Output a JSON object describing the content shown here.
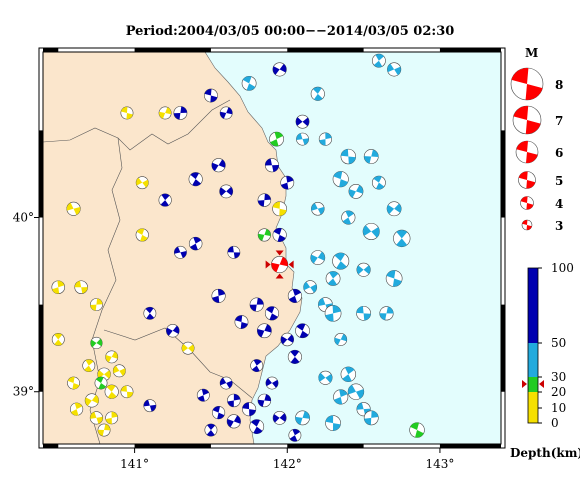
{
  "title": "Period:2004/03/05 00:00−−2014/03/05 02:30",
  "map": {
    "lon_range": [
      140.4,
      143.4
    ],
    "lat_range": [
      38.7,
      40.95
    ],
    "lon_ticks": [
      141,
      142,
      143
    ],
    "lat_ticks": [
      39,
      40
    ],
    "lon_labels": [
      "141°",
      "142°",
      "143°"
    ],
    "lat_labels": [
      "39°",
      "40°"
    ],
    "land_color": "#fbe6cc",
    "sea_color": "#e3fdfd"
  },
  "magnitude_legend": {
    "title": "M",
    "items": [
      {
        "label": "8",
        "m": 8
      },
      {
        "label": "7",
        "m": 7
      },
      {
        "label": "6",
        "m": 6
      },
      {
        "label": "5",
        "m": 5
      },
      {
        "label": "4",
        "m": 4
      },
      {
        "label": "3",
        "m": 3
      }
    ]
  },
  "depth_legend": {
    "title": "Depth(km)",
    "ticks": [
      "100",
      "50",
      "30",
      "20",
      "10",
      "0"
    ],
    "colors": {
      "0-10": "#f5e000",
      "10-20": "#f5e000",
      "20-30": "#22cc22",
      "30-50": "#22aadd",
      "50-100": "#0000b0"
    }
  },
  "latest_event": {
    "lon": 141.95,
    "lat": 39.73,
    "m": 4.5,
    "color": "#ff0000"
  },
  "events": [
    {
      "lon": 141.3,
      "lat": 40.6,
      "m": 3.5,
      "d": "deep"
    },
    {
      "lon": 141.5,
      "lat": 40.7,
      "m": 3.5,
      "d": "deep"
    },
    {
      "lon": 141.6,
      "lat": 40.6,
      "m": 3.2,
      "d": "deep"
    },
    {
      "lon": 141.75,
      "lat": 40.77,
      "m": 3.8,
      "d": "mid"
    },
    {
      "lon": 141.95,
      "lat": 40.85,
      "m": 3.6,
      "d": "deep"
    },
    {
      "lon": 142.2,
      "lat": 40.71,
      "m": 3.6,
      "d": "mid"
    },
    {
      "lon": 142.1,
      "lat": 40.55,
      "m": 3.5,
      "d": "deep"
    },
    {
      "lon": 142.6,
      "lat": 40.9,
      "m": 3.5,
      "d": "mid"
    },
    {
      "lon": 142.7,
      "lat": 40.85,
      "m": 3.6,
      "d": "mid"
    },
    {
      "lon": 141.93,
      "lat": 40.45,
      "m": 3.8,
      "d": "shallow_g"
    },
    {
      "lon": 142.1,
      "lat": 40.45,
      "m": 3.2,
      "d": "mid"
    },
    {
      "lon": 142.25,
      "lat": 40.45,
      "m": 3.3,
      "d": "mid"
    },
    {
      "lon": 142.4,
      "lat": 40.35,
      "m": 4.0,
      "d": "mid"
    },
    {
      "lon": 142.55,
      "lat": 40.35,
      "m": 3.8,
      "d": "mid"
    },
    {
      "lon": 142.35,
      "lat": 40.22,
      "m": 4.2,
      "d": "mid"
    },
    {
      "lon": 142.45,
      "lat": 40.15,
      "m": 3.8,
      "d": "mid"
    },
    {
      "lon": 142.6,
      "lat": 40.2,
      "m": 3.5,
      "d": "mid"
    },
    {
      "lon": 142.7,
      "lat": 40.05,
      "m": 3.8,
      "d": "mid"
    },
    {
      "lon": 142.75,
      "lat": 39.88,
      "m": 4.6,
      "d": "mid"
    },
    {
      "lon": 142.55,
      "lat": 39.92,
      "m": 4.5,
      "d": "mid"
    },
    {
      "lon": 142.4,
      "lat": 40.0,
      "m": 3.6,
      "d": "mid"
    },
    {
      "lon": 142.2,
      "lat": 40.05,
      "m": 3.4,
      "d": "mid"
    },
    {
      "lon": 142.0,
      "lat": 40.2,
      "m": 3.5,
      "d": "deep"
    },
    {
      "lon": 141.9,
      "lat": 40.3,
      "m": 3.6,
      "d": "deep"
    },
    {
      "lon": 141.85,
      "lat": 40.1,
      "m": 3.4,
      "d": "deep"
    },
    {
      "lon": 141.95,
      "lat": 40.05,
      "m": 3.8,
      "d": "shallow"
    },
    {
      "lon": 141.85,
      "lat": 39.9,
      "m": 3.3,
      "d": "shallow_g"
    },
    {
      "lon": 141.95,
      "lat": 39.9,
      "m": 3.6,
      "d": "deep"
    },
    {
      "lon": 142.2,
      "lat": 39.77,
      "m": 3.8,
      "d": "mid"
    },
    {
      "lon": 142.35,
      "lat": 39.75,
      "m": 4.5,
      "d": "mid"
    },
    {
      "lon": 142.5,
      "lat": 39.7,
      "m": 3.6,
      "d": "mid"
    },
    {
      "lon": 142.3,
      "lat": 39.65,
      "m": 3.8,
      "d": "mid"
    },
    {
      "lon": 142.15,
      "lat": 39.6,
      "m": 3.5,
      "d": "mid"
    },
    {
      "lon": 142.05,
      "lat": 39.55,
      "m": 3.6,
      "d": "deep"
    },
    {
      "lon": 142.25,
      "lat": 39.5,
      "m": 3.8,
      "d": "mid"
    },
    {
      "lon": 142.3,
      "lat": 39.45,
      "m": 4.4,
      "d": "mid"
    },
    {
      "lon": 142.5,
      "lat": 39.45,
      "m": 3.8,
      "d": "mid"
    },
    {
      "lon": 142.65,
      "lat": 39.45,
      "m": 3.6,
      "d": "mid"
    },
    {
      "lon": 142.7,
      "lat": 39.65,
      "m": 4.4,
      "d": "mid"
    },
    {
      "lon": 142.35,
      "lat": 39.3,
      "m": 3.2,
      "d": "mid"
    },
    {
      "lon": 142.1,
      "lat": 39.35,
      "m": 3.8,
      "d": "deep"
    },
    {
      "lon": 142.0,
      "lat": 39.3,
      "m": 3.4,
      "d": "deep"
    },
    {
      "lon": 142.05,
      "lat": 39.2,
      "m": 3.6,
      "d": "deep"
    },
    {
      "lon": 142.25,
      "lat": 39.08,
      "m": 3.6,
      "d": "mid"
    },
    {
      "lon": 142.4,
      "lat": 39.1,
      "m": 4.0,
      "d": "mid"
    },
    {
      "lon": 142.45,
      "lat": 39.0,
      "m": 4.3,
      "d": "mid"
    },
    {
      "lon": 142.35,
      "lat": 38.97,
      "m": 3.9,
      "d": "mid"
    },
    {
      "lon": 142.5,
      "lat": 38.9,
      "m": 3.6,
      "d": "mid"
    },
    {
      "lon": 142.55,
      "lat": 38.85,
      "m": 3.8,
      "d": "mid"
    },
    {
      "lon": 142.3,
      "lat": 38.82,
      "m": 4.1,
      "d": "mid"
    },
    {
      "lon": 142.1,
      "lat": 38.85,
      "m": 3.8,
      "d": "mid"
    },
    {
      "lon": 142.85,
      "lat": 38.78,
      "m": 4.0,
      "d": "shallow_g"
    },
    {
      "lon": 141.55,
      "lat": 40.3,
      "m": 3.6,
      "d": "deep"
    },
    {
      "lon": 141.4,
      "lat": 40.22,
      "m": 3.6,
      "d": "deep"
    },
    {
      "lon": 141.6,
      "lat": 40.15,
      "m": 3.5,
      "d": "deep"
    },
    {
      "lon": 141.2,
      "lat": 40.1,
      "m": 3.3,
      "d": "deep"
    },
    {
      "lon": 141.05,
      "lat": 40.2,
      "m": 3.2,
      "d": "shallow"
    },
    {
      "lon": 141.4,
      "lat": 39.85,
      "m": 3.4,
      "d": "deep"
    },
    {
      "lon": 141.3,
      "lat": 39.8,
      "m": 3.2,
      "d": "deep"
    },
    {
      "lon": 141.55,
      "lat": 39.55,
      "m": 3.6,
      "d": "deep"
    },
    {
      "lon": 141.65,
      "lat": 39.8,
      "m": 3.2,
      "d": "deep"
    },
    {
      "lon": 141.8,
      "lat": 39.5,
      "m": 3.6,
      "d": "deep"
    },
    {
      "lon": 141.7,
      "lat": 39.4,
      "m": 3.5,
      "d": "deep"
    },
    {
      "lon": 141.85,
      "lat": 39.35,
      "m": 3.8,
      "d": "deep"
    },
    {
      "lon": 141.9,
      "lat": 39.45,
      "m": 3.6,
      "d": "deep"
    },
    {
      "lon": 141.25,
      "lat": 39.35,
      "m": 3.4,
      "d": "deep"
    },
    {
      "lon": 141.1,
      "lat": 39.45,
      "m": 3.2,
      "d": "deep"
    },
    {
      "lon": 141.35,
      "lat": 39.25,
      "m": 3.2,
      "d": "shallow"
    },
    {
      "lon": 141.8,
      "lat": 39.15,
      "m": 3.2,
      "d": "deep"
    },
    {
      "lon": 141.6,
      "lat": 39.05,
      "m": 3.2,
      "d": "deep"
    },
    {
      "lon": 141.45,
      "lat": 38.98,
      "m": 3.2,
      "d": "deep"
    },
    {
      "lon": 141.1,
      "lat": 38.92,
      "m": 3.2,
      "d": "deep"
    },
    {
      "lon": 141.65,
      "lat": 38.95,
      "m": 3.4,
      "d": "deep"
    },
    {
      "lon": 141.75,
      "lat": 38.9,
      "m": 3.6,
      "d": "deep"
    },
    {
      "lon": 141.85,
      "lat": 38.95,
      "m": 3.4,
      "d": "deep"
    },
    {
      "lon": 141.55,
      "lat": 38.88,
      "m": 3.3,
      "d": "deep"
    },
    {
      "lon": 141.65,
      "lat": 38.83,
      "m": 3.6,
      "d": "deep"
    },
    {
      "lon": 141.8,
      "lat": 38.8,
      "m": 3.8,
      "d": "deep"
    },
    {
      "lon": 141.95,
      "lat": 38.85,
      "m": 3.5,
      "d": "deep"
    },
    {
      "lon": 141.5,
      "lat": 38.78,
      "m": 3.2,
      "d": "deep"
    },
    {
      "lon": 141.9,
      "lat": 39.05,
      "m": 3.2,
      "d": "deep"
    },
    {
      "lon": 142.05,
      "lat": 38.75,
      "m": 3.2,
      "d": "deep"
    },
    {
      "lon": 140.6,
      "lat": 40.05,
      "m": 3.6,
      "d": "shallow"
    },
    {
      "lon": 140.5,
      "lat": 39.6,
      "m": 3.4,
      "d": "shallow"
    },
    {
      "lon": 140.65,
      "lat": 39.6,
      "m": 3.4,
      "d": "shallow"
    },
    {
      "lon": 140.75,
      "lat": 39.5,
      "m": 3.2,
      "d": "shallow"
    },
    {
      "lon": 140.95,
      "lat": 40.6,
      "m": 3.2,
      "d": "shallow"
    },
    {
      "lon": 141.2,
      "lat": 40.6,
      "m": 3.2,
      "d": "shallow"
    },
    {
      "lon": 141.05,
      "lat": 39.9,
      "m": 3.3,
      "d": "shallow"
    },
    {
      "lon": 140.72,
      "lat": 38.95,
      "m": 3.6,
      "d": "shallow"
    },
    {
      "lon": 140.85,
      "lat": 39.0,
      "m": 3.6,
      "d": "shallow"
    },
    {
      "lon": 140.8,
      "lat": 39.1,
      "m": 3.4,
      "d": "shallow"
    },
    {
      "lon": 140.7,
      "lat": 39.15,
      "m": 3.2,
      "d": "shallow"
    },
    {
      "lon": 140.9,
      "lat": 39.12,
      "m": 3.2,
      "d": "shallow"
    },
    {
      "lon": 140.62,
      "lat": 38.9,
      "m": 3.3,
      "d": "shallow"
    },
    {
      "lon": 140.75,
      "lat": 38.85,
      "m": 3.3,
      "d": "shallow"
    },
    {
      "lon": 140.85,
      "lat": 38.85,
      "m": 3.2,
      "d": "shallow"
    },
    {
      "lon": 140.95,
      "lat": 39.0,
      "m": 3.2,
      "d": "shallow"
    },
    {
      "lon": 140.8,
      "lat": 38.78,
      "m": 3.2,
      "d": "shallow"
    },
    {
      "lon": 140.6,
      "lat": 39.05,
      "m": 3.2,
      "d": "shallow"
    },
    {
      "lon": 140.85,
      "lat": 39.2,
      "m": 3.2,
      "d": "shallow"
    },
    {
      "lon": 140.78,
      "lat": 39.05,
      "m": 3.2,
      "d": "shallow_g"
    },
    {
      "lon": 140.75,
      "lat": 39.28,
      "m": 3.0,
      "d": "shallow_g"
    },
    {
      "lon": 140.5,
      "lat": 39.3,
      "m": 3.2,
      "d": "shallow"
    }
  ]
}
